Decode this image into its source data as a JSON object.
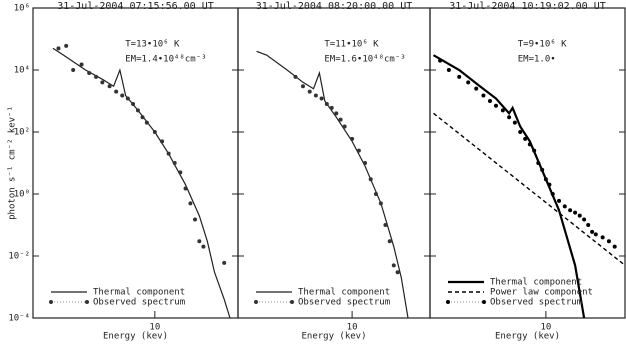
{
  "chart_data": [
    {
      "type": "line",
      "title": "31-Jul-2004 07:15:56.00 UT",
      "ylabel": "photon s⁻¹ cm⁻² kev⁻¹",
      "xlabel": "Energy (kev)",
      "annotations": [
        "T=13•10⁶ K",
        "EM=1.4•10⁴⁸cm⁻³"
      ],
      "xscale": "log",
      "yscale": "log",
      "xlim": [
        2,
        30
      ],
      "ylim": [
        0.0001,
        1000000
      ],
      "xticks": [
        10
      ],
      "yticks": [
        {
          "value": 0.0001,
          "label": "10⁻⁴"
        },
        {
          "value": 0.01,
          "label": "10⁻²"
        },
        {
          "value": 1,
          "label": "10⁰"
        },
        {
          "value": 100,
          "label": "10²"
        },
        {
          "value": 10000,
          "label": "10⁴"
        },
        {
          "value": 1000000,
          "label": "10⁶"
        }
      ],
      "show_ytick_labels": true,
      "legend": "lower left",
      "series": [
        {
          "name": "Thermal component",
          "color": "#222222",
          "line": "solid",
          "marker": "none",
          "width": 1.2,
          "x": [
            2.6,
            3,
            4,
            5,
            5.8,
            6.3,
            6.8,
            8,
            10,
            12,
            15,
            18,
            20,
            22,
            25,
            27
          ],
          "values": [
            50000,
            30000,
            10000,
            5000,
            3000,
            10000,
            1500,
            500,
            100,
            20,
            2,
            0.2,
            0.03,
            0.003,
            0.0004,
            0.0001
          ]
        },
        {
          "name": "Observed spectrum",
          "color": "#333333",
          "line": "dotted",
          "marker": "circle",
          "width": 1,
          "x": [
            2.8,
            3.1,
            3.4,
            3.8,
            4.2,
            4.6,
            5,
            5.5,
            6,
            6.5,
            7,
            7.5,
            8,
            8.5,
            9,
            10,
            11,
            12,
            13,
            14,
            15,
            16,
            17,
            18,
            19,
            25
          ],
          "values": [
            50000,
            60000,
            10000,
            15000,
            8000,
            6000,
            4000,
            3000,
            2000,
            1500,
            1200,
            800,
            500,
            300,
            200,
            100,
            50,
            20,
            10,
            5,
            1.5,
            0.5,
            0.15,
            0.03,
            0.02,
            0.006
          ]
        }
      ]
    },
    {
      "type": "line",
      "title": "31-Jul-2004 08:20:00.00 UT",
      "xlabel": "Energy (kev)",
      "annotations": [
        "T=11•10⁶ K",
        "EM=1.6•10⁴⁸cm⁻³"
      ],
      "xscale": "log",
      "yscale": "log",
      "xlim": [
        2,
        30
      ],
      "ylim": [
        0.0001,
        1000000
      ],
      "xticks": [
        10
      ],
      "yticks": [
        0.0001,
        0.01,
        1,
        100,
        10000,
        1000000
      ],
      "show_ytick_labels": false,
      "legend": "lower left",
      "series": [
        {
          "name": "Thermal component",
          "color": "#222222",
          "line": "solid",
          "marker": "none",
          "width": 1.2,
          "x": [
            2.6,
            3,
            4,
            5,
            5.8,
            6.3,
            6.8,
            8,
            10,
            12,
            15,
            18,
            20,
            22
          ],
          "values": [
            40000,
            30000,
            10000,
            4000,
            2500,
            8000,
            1000,
            300,
            50,
            8,
            0.5,
            0.02,
            0.002,
            0.0001
          ]
        },
        {
          "name": "Observed spectrum",
          "color": "#333333",
          "line": "dotted",
          "marker": "circle",
          "width": 1,
          "x": [
            4.5,
            5,
            5.5,
            6,
            6.5,
            7,
            7.5,
            8,
            8.5,
            9,
            10,
            11,
            12,
            13,
            14,
            15,
            16,
            17,
            18,
            19
          ],
          "values": [
            6000,
            3000,
            2000,
            1500,
            1200,
            800,
            600,
            400,
            250,
            150,
            60,
            25,
            10,
            3,
            1,
            0.5,
            0.1,
            0.03,
            0.005,
            0.003
          ]
        }
      ]
    },
    {
      "type": "line",
      "title": "31-Jul-2004 10:19:02.00 UT",
      "xlabel": "Energy (kev)",
      "annotations": [
        "T=9•10⁶ K",
        "EM=1.0•"
      ],
      "xscale": "log",
      "yscale": "log",
      "xlim": [
        2,
        30
      ],
      "ylim": [
        0.0001,
        1000000
      ],
      "xticks": [
        10
      ],
      "yticks": [
        0.0001,
        0.01,
        1,
        100,
        10000,
        1000000
      ],
      "show_ytick_labels": false,
      "legend": "lower left",
      "series": [
        {
          "name": "Thermal component",
          "color": "#000000",
          "line": "solid",
          "marker": "none",
          "width": 2.2,
          "x": [
            2.1,
            3,
            4,
            5,
            6,
            6.3,
            7,
            8,
            10,
            12,
            15,
            17
          ],
          "values": [
            30000,
            10000,
            3000,
            1200,
            400,
            600,
            150,
            50,
            3,
            0.3,
            0.005,
            0.0001
          ]
        },
        {
          "name": "Power law component",
          "color": "#000000",
          "line": "dashed",
          "marker": "none",
          "width": 1.4,
          "x": [
            2.1,
            30
          ],
          "values": [
            400,
            0.005
          ]
        },
        {
          "name": "Observed spectrum",
          "color": "#000000",
          "line": "dotted",
          "marker": "circle",
          "width": 1,
          "x": [
            2.3,
            2.6,
            3,
            3.4,
            3.8,
            4.2,
            4.6,
            5,
            5.5,
            6,
            6.5,
            7,
            7.5,
            8,
            8.5,
            9,
            9.5,
            10,
            10.5,
            11,
            12,
            13,
            14,
            15,
            16,
            17,
            18,
            19,
            20,
            22,
            24,
            26
          ],
          "values": [
            20000,
            10000,
            6000,
            4000,
            2500,
            1500,
            1000,
            700,
            500,
            300,
            200,
            100,
            60,
            40,
            25,
            10,
            6,
            3,
            2,
            1,
            0.6,
            0.4,
            0.3,
            0.25,
            0.2,
            0.15,
            0.1,
            0.06,
            0.05,
            0.04,
            0.03,
            0.02
          ]
        }
      ]
    }
  ]
}
